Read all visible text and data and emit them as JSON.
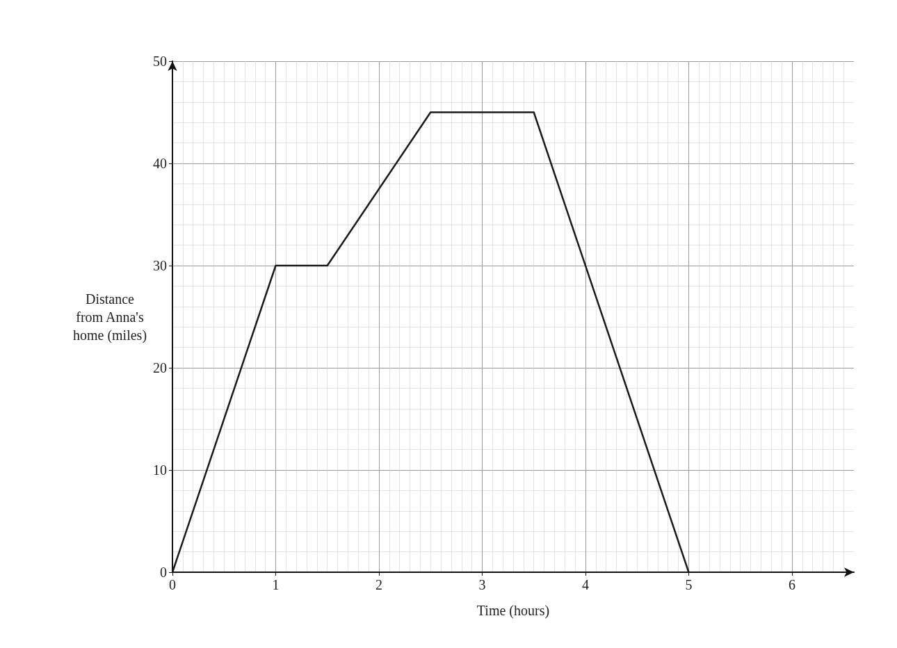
{
  "chart_data": {
    "type": "line",
    "xlabel": "Time (hours)",
    "ylabel": "Distance\nfrom Anna's\nhome (miles)",
    "series": [
      {
        "color": "#1a1a1a",
        "x": [
          0,
          1,
          1.5,
          2.5,
          3.5,
          5
        ],
        "values": [
          0,
          30,
          30,
          45,
          45,
          0
        ]
      }
    ],
    "xlim": [
      0,
      6.6
    ],
    "xticks": [
      0,
      1,
      2,
      3,
      4,
      5,
      6
    ],
    "ylim": [
      0,
      50
    ],
    "yticks": [
      0,
      10,
      20,
      30,
      40,
      50
    ],
    "grid": true,
    "marker": "none",
    "line_style": "solid"
  }
}
